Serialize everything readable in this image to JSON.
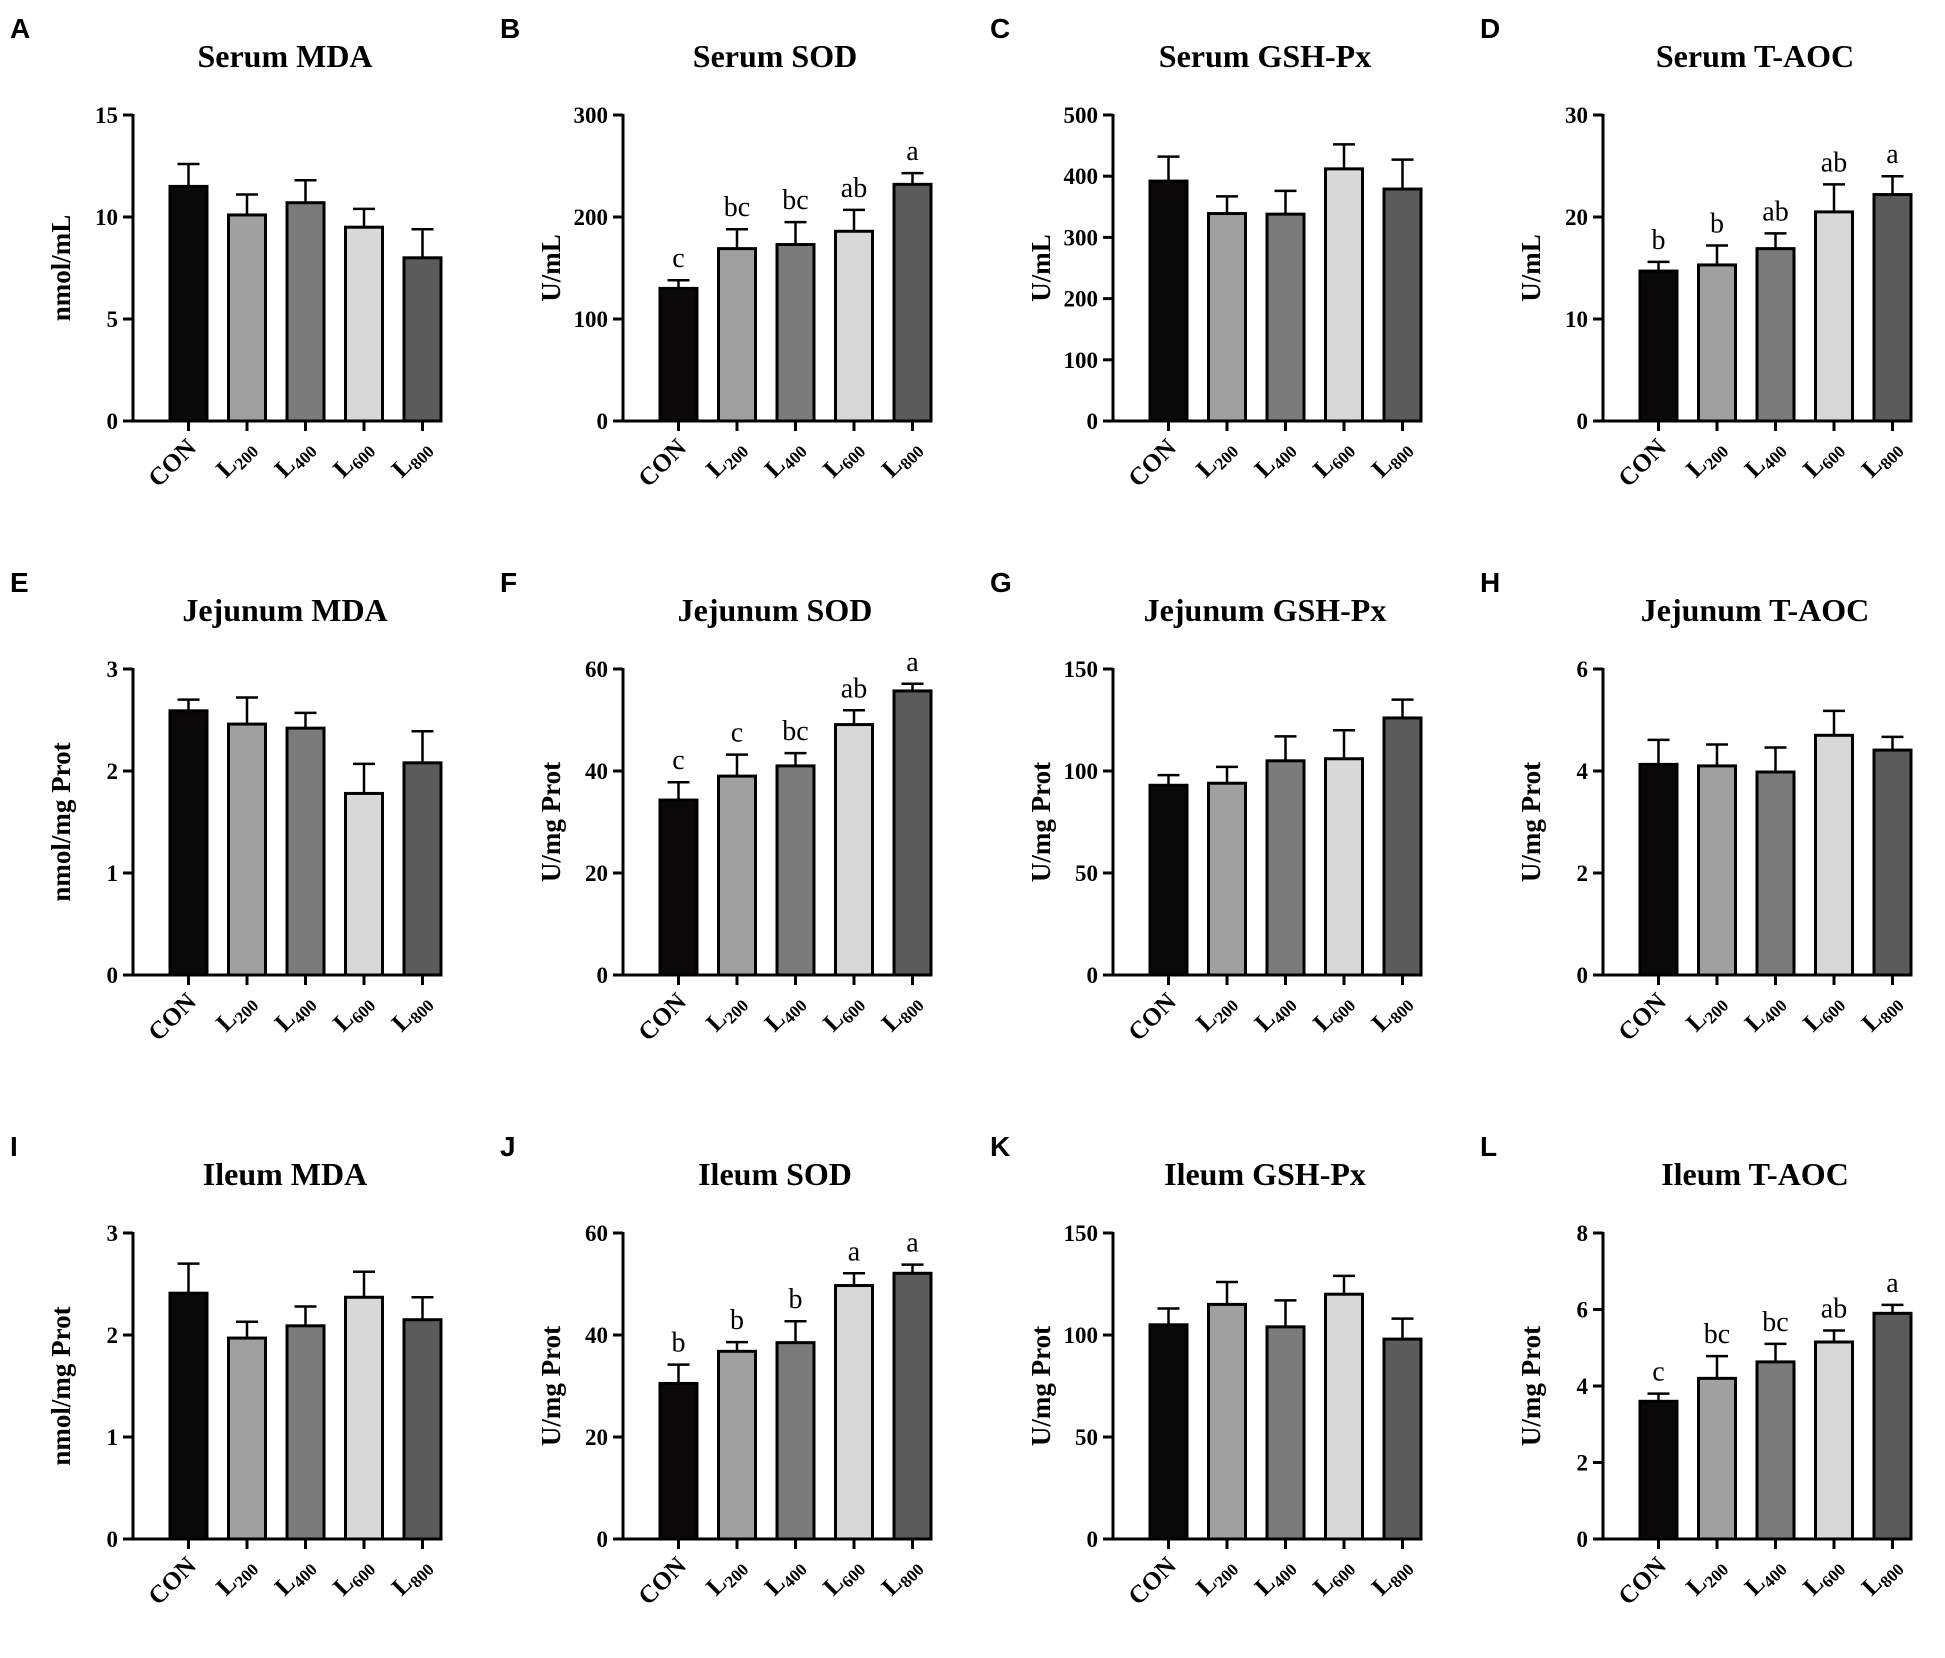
{
  "figure": {
    "categories": [
      "CON",
      "L200",
      "L400",
      "L600",
      "L800"
    ],
    "category_parts": [
      [
        "CON",
        ""
      ],
      [
        "L",
        "200"
      ],
      [
        "L",
        "400"
      ],
      [
        "L",
        "600"
      ],
      [
        "L",
        "800"
      ]
    ],
    "bar_colors": [
      "#0c0808",
      "#a0a0a0",
      "#7b7b7b",
      "#d8d8d8",
      "#5b5b5b"
    ]
  },
  "chart_data": [
    {
      "letter": "A",
      "type": "bar",
      "title": "Serum MDA",
      "ylabel": "nmol/mL",
      "ylim": [
        0,
        15
      ],
      "yticks": [
        0,
        5,
        10,
        15
      ],
      "series": [
        {
          "name": "Serum MDA",
          "values": [
            11.5,
            10.1,
            10.7,
            9.5,
            8.0
          ]
        }
      ],
      "errors": [
        1.1,
        1.0,
        1.1,
        0.9,
        1.4
      ],
      "labels": [
        "",
        "",
        "",
        "",
        ""
      ]
    },
    {
      "letter": "B",
      "type": "bar",
      "title": "Serum SOD",
      "ylabel": "U/mL",
      "ylim": [
        0,
        300
      ],
      "yticks": [
        0,
        100,
        200,
        300
      ],
      "series": [
        {
          "name": "Serum SOD",
          "values": [
            130,
            169,
            173,
            186,
            232
          ]
        }
      ],
      "errors": [
        8,
        19,
        22,
        21,
        11
      ],
      "labels": [
        "c",
        "bc",
        "bc",
        "ab",
        "a"
      ]
    },
    {
      "letter": "C",
      "type": "bar",
      "title": "Serum GSH-Px",
      "ylabel": "U/mL",
      "ylim": [
        0,
        500
      ],
      "yticks": [
        0,
        100,
        200,
        300,
        400,
        500
      ],
      "series": [
        {
          "name": "Serum GSH-Px",
          "values": [
            392,
            339,
            338,
            412,
            379
          ]
        }
      ],
      "errors": [
        40,
        28,
        38,
        40,
        48
      ],
      "labels": [
        "",
        "",
        "",
        "",
        ""
      ]
    },
    {
      "letter": "D",
      "type": "bar",
      "title": "Serum T-AOC",
      "ylabel": "U/mL",
      "ylim": [
        0,
        30
      ],
      "yticks": [
        0,
        10,
        20,
        30
      ],
      "series": [
        {
          "name": "Serum T-AOC",
          "values": [
            14.7,
            15.3,
            16.9,
            20.5,
            22.2
          ]
        }
      ],
      "errors": [
        0.9,
        1.9,
        1.5,
        2.7,
        1.8
      ],
      "labels": [
        "b",
        "b",
        "ab",
        "ab",
        "a"
      ]
    },
    {
      "letter": "E",
      "type": "bar",
      "title": "Jejunum MDA",
      "ylabel": "nmol/mg Prot",
      "ylim": [
        0,
        3
      ],
      "yticks": [
        0,
        1,
        2,
        3
      ],
      "series": [
        {
          "name": "Jejunum MDA",
          "values": [
            2.59,
            2.46,
            2.42,
            1.78,
            2.08
          ]
        }
      ],
      "errors": [
        0.11,
        0.26,
        0.15,
        0.29,
        0.31
      ],
      "labels": [
        "",
        "",
        "",
        "",
        ""
      ]
    },
    {
      "letter": "F",
      "type": "bar",
      "title": "Jejunum SOD",
      "ylabel": "U/mg Prot",
      "ylim": [
        0,
        60
      ],
      "yticks": [
        0,
        20,
        40,
        60
      ],
      "series": [
        {
          "name": "Jejunum SOD",
          "values": [
            34.3,
            39.0,
            41.0,
            49.1,
            55.7
          ]
        }
      ],
      "errors": [
        3.5,
        4.2,
        2.5,
        2.8,
        1.4
      ],
      "labels": [
        "c",
        "c",
        "bc",
        "ab",
        "a"
      ]
    },
    {
      "letter": "G",
      "type": "bar",
      "title": "Jejunum GSH-Px",
      "ylabel": "U/mg Prot",
      "ylim": [
        0,
        150
      ],
      "yticks": [
        0,
        50,
        100,
        150
      ],
      "series": [
        {
          "name": "Jejunum GSH-Px",
          "values": [
            93,
            94,
            105,
            106,
            126
          ]
        }
      ],
      "errors": [
        5,
        8,
        12,
        14,
        9
      ],
      "labels": [
        "",
        "",
        "",
        "",
        ""
      ]
    },
    {
      "letter": "H",
      "type": "bar",
      "title": "Jejunum T-AOC",
      "ylabel": "U/mg Prot",
      "ylim": [
        0,
        6
      ],
      "yticks": [
        0,
        2,
        4,
        6
      ],
      "series": [
        {
          "name": "Jejunum T-AOC",
          "values": [
            4.13,
            4.1,
            3.98,
            4.7,
            4.41
          ]
        }
      ],
      "errors": [
        0.48,
        0.42,
        0.48,
        0.48,
        0.26
      ],
      "labels": [
        "",
        "",
        "",
        "",
        ""
      ]
    },
    {
      "letter": "I",
      "type": "bar",
      "title": "Ileum MDA",
      "ylabel": "nmol/mg Prot",
      "ylim": [
        0,
        3
      ],
      "yticks": [
        0,
        1,
        2,
        3
      ],
      "series": [
        {
          "name": "Ileum MDA",
          "values": [
            2.41,
            1.97,
            2.09,
            2.37,
            2.15
          ]
        }
      ],
      "errors": [
        0.29,
        0.16,
        0.19,
        0.25,
        0.22
      ],
      "labels": [
        "",
        "",
        "",
        "",
        ""
      ]
    },
    {
      "letter": "J",
      "type": "bar",
      "title": "Ileum SOD",
      "ylabel": "U/mg Prot",
      "ylim": [
        0,
        60
      ],
      "yticks": [
        0,
        20,
        40,
        60
      ],
      "series": [
        {
          "name": "Ileum SOD",
          "values": [
            30.5,
            36.8,
            38.5,
            49.7,
            52.1
          ]
        }
      ],
      "errors": [
        3.7,
        1.8,
        4.2,
        2.4,
        1.7
      ],
      "labels": [
        "b",
        "b",
        "b",
        "a",
        "a"
      ]
    },
    {
      "letter": "K",
      "type": "bar",
      "title": "Ileum GSH-Px",
      "ylabel": "U/mg Prot",
      "ylim": [
        0,
        150
      ],
      "yticks": [
        0,
        50,
        100,
        150
      ],
      "series": [
        {
          "name": "Ileum GSH-Px",
          "values": [
            105,
            115,
            104,
            120,
            98
          ]
        }
      ],
      "errors": [
        8,
        11,
        13,
        9,
        10
      ],
      "labels": [
        "",
        "",
        "",
        "",
        ""
      ]
    },
    {
      "letter": "L",
      "type": "bar",
      "title": "Ileum T-AOC",
      "ylabel": "U/mg Prot",
      "ylim": [
        0,
        8
      ],
      "yticks": [
        0,
        2,
        4,
        6,
        8
      ],
      "series": [
        {
          "name": "Ileum T-AOC",
          "values": [
            3.6,
            4.2,
            4.63,
            5.15,
            5.9
          ]
        }
      ],
      "errors": [
        0.2,
        0.58,
        0.47,
        0.3,
        0.22
      ],
      "labels": [
        "c",
        "bc",
        "bc",
        "ab",
        "a"
      ]
    }
  ]
}
